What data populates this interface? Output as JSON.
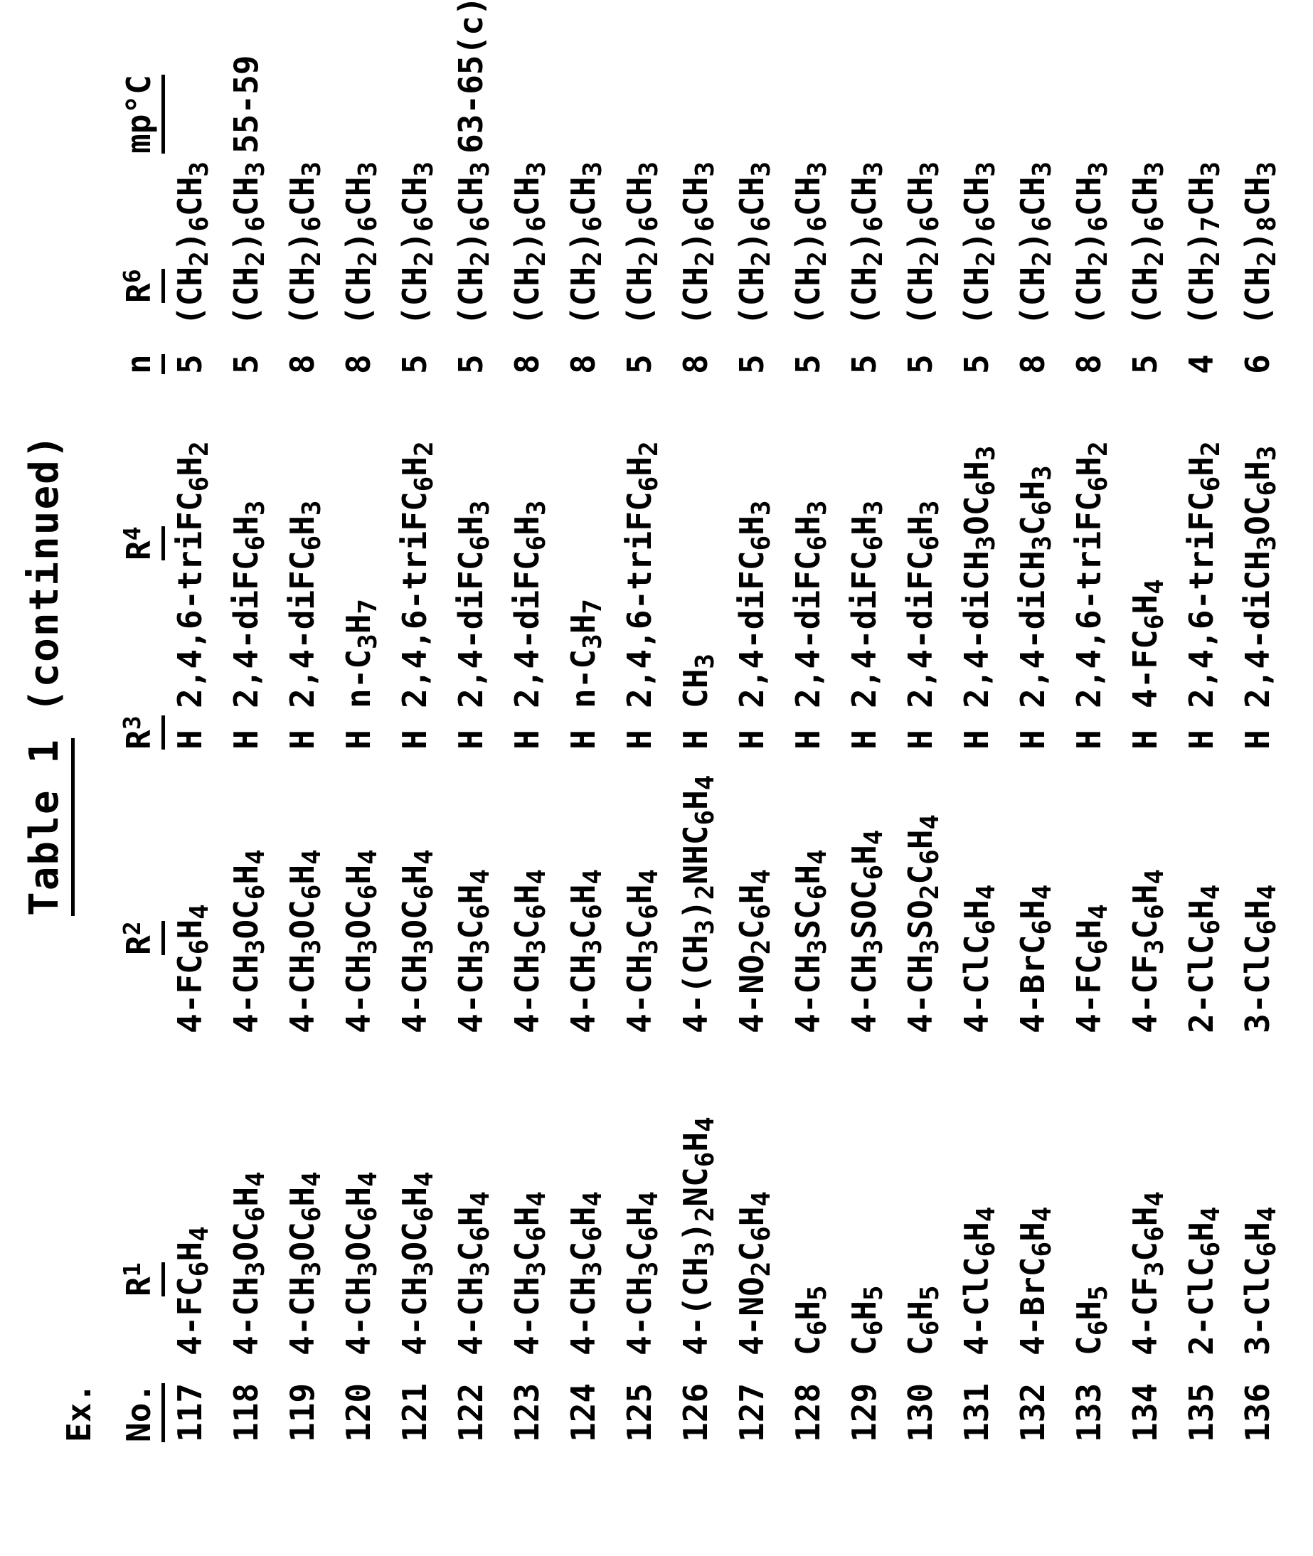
{
  "title": {
    "underlined": "Table 1",
    "rest": " (continued)"
  },
  "table": {
    "ex_label": "Ex.",
    "headers": {
      "no": "No.",
      "r1": "R^1",
      "r2": "R^2",
      "r3": "R^3",
      "r4": "R^4",
      "n": "n",
      "r6": "R^6",
      "mp": "mp°C"
    },
    "rows": [
      {
        "no": "117",
        "r1": "4-FC_6H_4",
        "r2": "4-FC_6H_4",
        "r3": "H",
        "r4": "2,4,6-triFC_6H_2",
        "n": "5",
        "r6": "(CH_2)_6CH_3",
        "mp": ""
      },
      {
        "no": "118",
        "r1": "4-CH_3OC_6H_4",
        "r2": "4-CH_3OC_6H_4",
        "r3": "H",
        "r4": "2,4-diFC_6H_3",
        "n": "5",
        "r6": "(CH_2)_6CH_3",
        "mp": "55-59"
      },
      {
        "no": "119",
        "r1": "4-CH_3OC_6H_4",
        "r2": "4-CH_3OC_6H_4",
        "r3": "H",
        "r4": "2,4-diFC_6H_3",
        "n": "8",
        "r6": "(CH_2)_6CH_3",
        "mp": ""
      },
      {
        "no": "120",
        "r1": "4-CH_3OC_6H_4",
        "r2": "4-CH_3OC_6H_4",
        "r3": "H",
        "r4": "n-C_3H_7",
        "n": "8",
        "r6": "(CH_2)_6CH_3",
        "mp": ""
      },
      {
        "no": "121",
        "r1": "4-CH_3OC_6H_4",
        "r2": "4-CH_3OC_6H_4",
        "r3": "H",
        "r4": "2,4,6-triFC_6H_2",
        "n": "5",
        "r6": "(CH_2)_6CH_3",
        "mp": ""
      },
      {
        "no": "122",
        "r1": "4-CH_3C_6H_4",
        "r2": "4-CH_3C_6H_4",
        "r3": "H",
        "r4": "2,4-diFC_6H_3",
        "n": "5",
        "r6": "(CH_2)_6CH_3",
        "mp": "63-65(c)"
      },
      {
        "no": "123",
        "r1": "4-CH_3C_6H_4",
        "r2": "4-CH_3C_6H_4",
        "r3": "H",
        "r4": "2,4-diFC_6H_3",
        "n": "8",
        "r6": "(CH_2)_6CH_3",
        "mp": ""
      },
      {
        "no": "124",
        "r1": "4-CH_3C_6H_4",
        "r2": "4-CH_3C_6H_4",
        "r3": "H",
        "r4": "n-C_3H_7",
        "n": "8",
        "r6": "(CH_2)_6CH_3",
        "mp": ""
      },
      {
        "no": "125",
        "r1": "4-CH_3C_6H_4",
        "r2": "4-CH_3C_6H_4",
        "r3": "H",
        "r4": "2,4,6-triFC_6H_2",
        "n": "5",
        "r6": "(CH_2)_6CH_3",
        "mp": ""
      },
      {
        "no": "126",
        "r1": "4-(CH_3)_2NC_6H_4",
        "r2": "4-(CH_3)_2NHC_6H_4",
        "r3": "H",
        "r4": "CH_3",
        "n": "8",
        "r6": "(CH_2)_6CH_3",
        "mp": ""
      },
      {
        "no": "127",
        "r1": "4-NO_2C_6H_4",
        "r2": "4-NO_2C_6H_4",
        "r3": "H",
        "r4": "2,4-diFC_6H_3",
        "n": "5",
        "r6": "(CH_2)_6CH_3",
        "mp": ""
      },
      {
        "no": "128",
        "r1": "C_6H_5",
        "r2": "4-CH_3SC_6H_4",
        "r3": "H",
        "r4": "2,4-diFC_6H_3",
        "n": "5",
        "r6": "(CH_2)_6CH_3",
        "mp": ""
      },
      {
        "no": "129",
        "r1": "C_6H_5",
        "r2": "4-CH_3SOC_6H_4",
        "r3": "H",
        "r4": "2,4-diFC_6H_3",
        "n": "5",
        "r6": "(CH_2)_6CH_3",
        "mp": ""
      },
      {
        "no": "130",
        "r1": "C_6H_5",
        "r2": "4-CH_3SO_2C_6H_4",
        "r3": "H",
        "r4": "2,4-diFC_6H_3",
        "n": "5",
        "r6": "(CH_2)_6CH_3",
        "mp": ""
      },
      {
        "no": "131",
        "r1": "4-ClC_6H_4",
        "r2": "4-ClC_6H_4",
        "r3": "H",
        "r4": "2,4-diCH_3OC_6H_3",
        "n": "5",
        "r6": "(CH_2)_6CH_3",
        "mp": ""
      },
      {
        "no": "132",
        "r1": "4-BrC_6H_4",
        "r2": "4-BrC_6H_4",
        "r3": "H",
        "r4": "2,4-diCH_3C_6H_3",
        "n": "8",
        "r6": "(CH_2)_6CH_3",
        "mp": ""
      },
      {
        "no": "133",
        "r1": "C_6H_5",
        "r2": "4-FC_6H_4",
        "r3": "H",
        "r4": "2,4,6-triFC_6H_2",
        "n": "8",
        "r6": "(CH_2)_6CH_3",
        "mp": ""
      },
      {
        "no": "134",
        "r1": "4-CF_3C_6H_4",
        "r2": "4-CF_3C_6H_4",
        "r3": "H",
        "r4": "4-FC_6H_4",
        "n": "5",
        "r6": "(CH_2)_6CH_3",
        "mp": ""
      },
      {
        "no": "135",
        "r1": "2-ClC_6H_4",
        "r2": "2-ClC_6H_4",
        "r3": "H",
        "r4": "2,4,6-triFC_6H_2",
        "n": "4",
        "r6": "(CH_2)_7CH_3",
        "mp": ""
      },
      {
        "no": "136",
        "r1": "3-ClC_6H_4",
        "r2": "3-ClC_6H_4",
        "r3": "H",
        "r4": "2,4-diCH_3OC_6H_3",
        "n": "6",
        "r6": "(CH_2)_8CH_3",
        "mp": ""
      }
    ]
  }
}
